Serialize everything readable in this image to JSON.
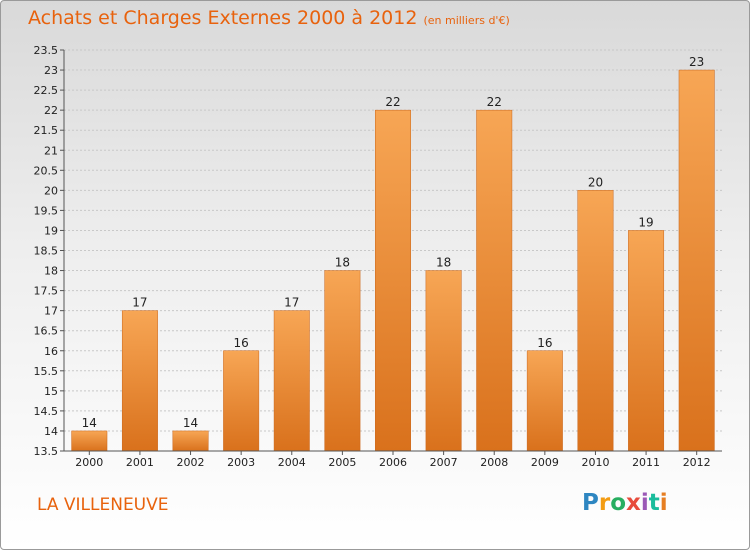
{
  "header": {
    "title": "Achats et Charges Externes 2000 à 2012",
    "unit": "(en milliers d'€)"
  },
  "footer": {
    "commune": "LA VILLENEUVE",
    "logo_letters": [
      "P",
      "r",
      "o",
      "x",
      "i",
      "t",
      "i"
    ],
    "logo_colors": [
      "#2e86c1",
      "#f39c12",
      "#27ae60",
      "#e74c3c",
      "#9b59b6",
      "#1abc9c",
      "#e67e22"
    ]
  },
  "chart_data": {
    "type": "bar",
    "categories": [
      "2000",
      "2001",
      "2002",
      "2003",
      "2004",
      "2005",
      "2006",
      "2007",
      "2008",
      "2009",
      "2010",
      "2011",
      "2012"
    ],
    "values": [
      14,
      17,
      14,
      16,
      17,
      18,
      22,
      18,
      22,
      16,
      20,
      19,
      23
    ],
    "data_labels": [
      "14",
      "17",
      "14",
      "16",
      "17",
      "18",
      "22",
      "18",
      "22",
      "16",
      "20",
      "19",
      "23"
    ],
    "yticks": [
      "13.5",
      "14",
      "14.5",
      "15",
      "15.5",
      "16",
      "16.5",
      "17",
      "17.5",
      "18",
      "18.5",
      "19",
      "19.5",
      "20",
      "20.5",
      "21",
      "21.5",
      "22",
      "22.5",
      "23",
      "23.5"
    ],
    "ylim": [
      13.5,
      23.5
    ],
    "grid": true,
    "bar_color_top": "#f7a655",
    "bar_color_bottom": "#d9711c"
  }
}
